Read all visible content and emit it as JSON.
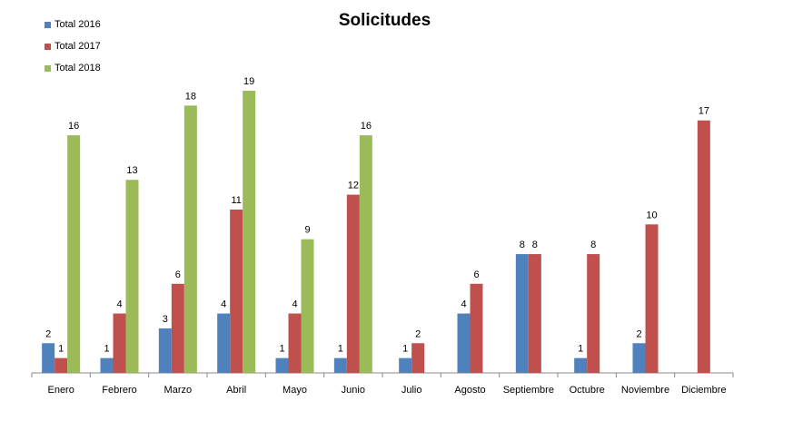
{
  "chart_data": {
    "type": "bar",
    "title": "Solicitudes",
    "categories": [
      "Enero",
      "Febrero",
      "Marzo",
      "Abril",
      "Mayo",
      "Junio",
      "Julio",
      "Agosto",
      "Septiembre",
      "Octubre",
      "Noviembre",
      "Diciembre"
    ],
    "series": [
      {
        "name": "Total 2016",
        "color": "#4f81bd",
        "values": [
          2,
          1,
          3,
          4,
          1,
          1,
          1,
          4,
          8,
          1,
          2,
          null
        ]
      },
      {
        "name": "Total 2017",
        "color": "#c0504d",
        "values": [
          1,
          4,
          6,
          11,
          4,
          12,
          2,
          6,
          8,
          8,
          10,
          17
        ]
      },
      {
        "name": "Total 2018",
        "color": "#9bbb59",
        "values": [
          16,
          13,
          18,
          19,
          9,
          16,
          null,
          null,
          null,
          null,
          null,
          null
        ]
      }
    ],
    "ylim": [
      0,
      19
    ],
    "grid": false,
    "data_labels": true,
    "legend_position": "top-left"
  }
}
